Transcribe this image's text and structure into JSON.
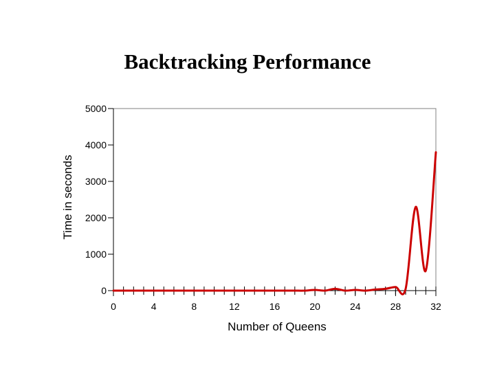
{
  "chart_data": {
    "type": "line",
    "title": "Backtracking Performance",
    "xlabel": "Number of Queens",
    "ylabel": "Time in seconds",
    "xlim": [
      0,
      32
    ],
    "ylim": [
      0,
      5000
    ],
    "x_ticks": [
      0,
      4,
      8,
      12,
      16,
      20,
      24,
      28,
      32
    ],
    "y_ticks": [
      0,
      1000,
      2000,
      3000,
      4000,
      5000
    ],
    "grid": false,
    "line_color": "#cc0000",
    "series": [
      {
        "x": [
          0,
          1,
          2,
          3,
          4,
          5,
          6,
          7,
          8,
          9,
          10,
          11,
          12,
          13,
          14,
          15,
          16,
          17,
          18,
          19,
          20,
          21,
          22,
          23,
          24,
          25,
          26,
          27,
          28,
          29,
          30,
          31,
          32
        ],
        "values": [
          0,
          0,
          0,
          0,
          0,
          0,
          0,
          0,
          0,
          0,
          0,
          0,
          0,
          0,
          0,
          0,
          0,
          0,
          0,
          0,
          20,
          0,
          50,
          0,
          20,
          0,
          30,
          50,
          100,
          50,
          2300,
          550,
          3800
        ]
      }
    ]
  }
}
